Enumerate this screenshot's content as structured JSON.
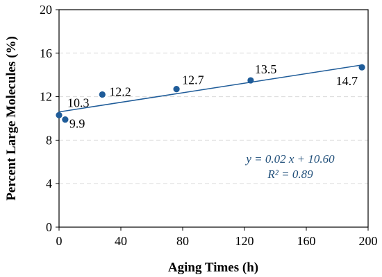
{
  "chart_data": {
    "type": "scatter",
    "xlabel": "Aging Times (h)",
    "ylabel": "Percent Large Molecules (%)",
    "xlim": [
      0,
      200
    ],
    "ylim": [
      0,
      20
    ],
    "xticks": [
      "0",
      "40",
      "80",
      "120",
      "160",
      "200"
    ],
    "yticks": [
      "0",
      "4",
      "8",
      "12",
      "16",
      "20"
    ],
    "grid": "horizontal-dashed",
    "series": [
      {
        "points": [
          {
            "x": 0,
            "y": 10.3,
            "label": "10.3"
          },
          {
            "x": 4,
            "y": 9.9,
            "label": "9.9"
          },
          {
            "x": 28,
            "y": 12.2,
            "label": "12.2"
          },
          {
            "x": 76,
            "y": 12.7,
            "label": "12.7"
          },
          {
            "x": 124,
            "y": 13.5,
            "label": "13.5"
          },
          {
            "x": 196,
            "y": 14.7,
            "label": "14.7"
          }
        ]
      }
    ],
    "trendline": {
      "slope": 0.022,
      "intercept": 10.6,
      "x_range": [
        0,
        196
      ]
    },
    "annotation": {
      "equation": "y = 0.02 x + 10.60",
      "r2": "R² = 0.89"
    },
    "colors": {
      "marker": "#1F5C99",
      "trendline": "#1F5C99",
      "annotation": "#1F4E79",
      "grid": "#d9d9d9"
    }
  }
}
